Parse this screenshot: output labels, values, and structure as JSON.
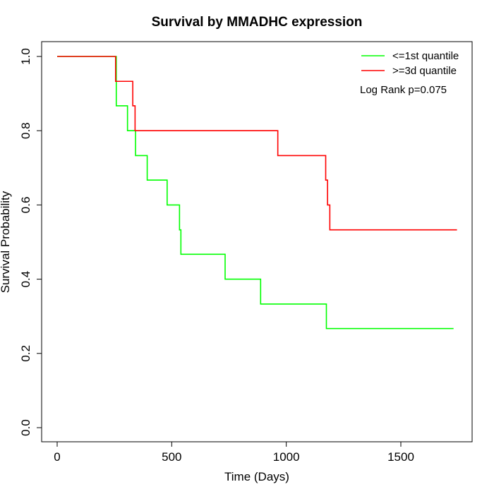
{
  "chart_data": {
    "type": "line",
    "title": "Survival by MMADHC expression",
    "xlabel": "Time (Days)",
    "ylabel": "Survival Probability",
    "xlim": [
      0,
      1800
    ],
    "ylim": [
      0,
      1
    ],
    "xticks": [
      0,
      500,
      1000,
      1500
    ],
    "yticks": [
      0.0,
      0.2,
      0.4,
      0.6,
      0.8,
      1.0
    ],
    "xtick_labels": [
      "0",
      "500",
      "1000",
      "1500"
    ],
    "ytick_labels": [
      "0.0",
      "0.2",
      "0.4",
      "0.6",
      "0.8",
      "1.0"
    ],
    "grid": false,
    "legend_position": "top-right",
    "annotation": "Log Rank p=0.075",
    "series": [
      {
        "name": "<=1st quantile",
        "color": "#00ff00",
        "step": true,
        "x": [
          0,
          258,
          307,
          342,
          393,
          480,
          534,
          540,
          733,
          888,
          1175,
          1730
        ],
        "y": [
          1.0,
          0.867,
          0.8,
          0.733,
          0.667,
          0.6,
          0.533,
          0.467,
          0.4,
          0.333,
          0.267,
          0.267
        ]
      },
      {
        "name": ">=3d quantile",
        "color": "#ff0000",
        "step": true,
        "x": [
          0,
          255,
          330,
          340,
          963,
          1172,
          1180,
          1190,
          1745
        ],
        "y": [
          1.0,
          0.933,
          0.867,
          0.8,
          0.733,
          0.667,
          0.6,
          0.533,
          0.533
        ]
      }
    ]
  }
}
